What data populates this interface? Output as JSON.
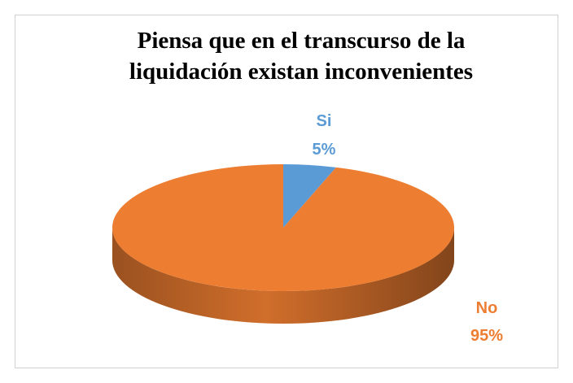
{
  "chart_data": {
    "type": "pie",
    "title": [
      "Piensa que en el transcurso de la",
      "liquidación existan inconvenientes"
    ],
    "categories": [
      "Si",
      "No"
    ],
    "values": [
      5,
      95
    ],
    "value_labels": [
      "5%",
      "95%"
    ],
    "colors": [
      "#5b9bd5",
      "#ed7d31"
    ]
  }
}
